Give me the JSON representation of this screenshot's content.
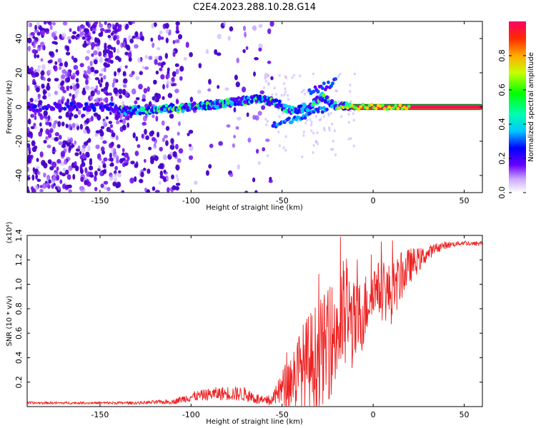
{
  "figure_title": "C2E4.2023.288.10.28.G14",
  "chart_data": [
    {
      "type": "heatmap",
      "title": "",
      "xlabel": "Height of straight line (km)",
      "ylabel": "Frequency (Hz)",
      "xlim": [
        -190,
        60
      ],
      "ylim": [
        -50,
        50
      ],
      "xticks": [
        -150,
        -100,
        -50,
        0,
        50
      ],
      "yticks": [
        -40,
        -20,
        0,
        20,
        40
      ],
      "colorbar": {
        "label": "Normalized spectral amplitude",
        "range": [
          0,
          1
        ],
        "ticks": [
          0.0,
          0.2,
          0.4,
          0.6,
          0.8
        ]
      },
      "ridge": {
        "x": [
          -190,
          -175,
          -160,
          -145,
          -135,
          -120,
          -105,
          -90,
          -75,
          -65,
          -55,
          -45,
          -35,
          -28,
          -22,
          -15,
          -10,
          0,
          5,
          10,
          20,
          40,
          60
        ],
        "frequency": [
          0,
          0,
          0,
          0,
          -2,
          -1.5,
          -0.5,
          1,
          3,
          5,
          3,
          -2,
          0,
          6,
          1,
          0.5,
          0,
          0,
          -0.5,
          -0.5,
          0,
          0,
          0
        ]
      }
    },
    {
      "type": "line",
      "title": "",
      "xlabel": "Height of straight line (km)",
      "ylabel": "SNR (10 * v/v)",
      "y_multiplier": "(x10⁴)",
      "xlim": [
        -190,
        60
      ],
      "ylim": [
        0,
        1.4
      ],
      "xticks": [
        -150,
        -100,
        -50,
        0,
        50
      ],
      "yticks": [
        0.2,
        0.4,
        0.6,
        0.8,
        1.0,
        1.2,
        1.4
      ],
      "series": [
        {
          "color": "#ee2222",
          "x": [
            -190,
            -170,
            -150,
            -130,
            -110,
            -100,
            -90,
            -80,
            -70,
            -60,
            -55,
            -50,
            -45,
            -40,
            -35,
            -30,
            -25,
            -20,
            -15,
            -10,
            -5,
            0,
            5,
            10,
            15,
            20,
            25,
            30,
            35,
            40,
            45,
            50,
            55,
            60
          ],
          "y": [
            0.03,
            0.03,
            0.03,
            0.03,
            0.04,
            0.08,
            0.1,
            0.11,
            0.1,
            0.04,
            0.06,
            0.15,
            0.22,
            0.3,
            0.36,
            0.42,
            0.5,
            0.62,
            0.75,
            0.65,
            0.78,
            0.98,
            0.95,
            0.92,
            1.05,
            1.15,
            1.2,
            1.25,
            1.3,
            1.32,
            1.33,
            1.34,
            1.33,
            1.34
          ],
          "noise": [
            0.01,
            0.01,
            0.01,
            0.012,
            0.02,
            0.04,
            0.05,
            0.06,
            0.06,
            0.04,
            0.05,
            0.15,
            0.25,
            0.35,
            0.42,
            0.45,
            0.45,
            0.5,
            0.5,
            0.35,
            0.3,
            0.2,
            0.25,
            0.25,
            0.2,
            0.15,
            0.1,
            0.06,
            0.04,
            0.03,
            0.02,
            0.02,
            0.02,
            0.02
          ]
        }
      ]
    }
  ]
}
